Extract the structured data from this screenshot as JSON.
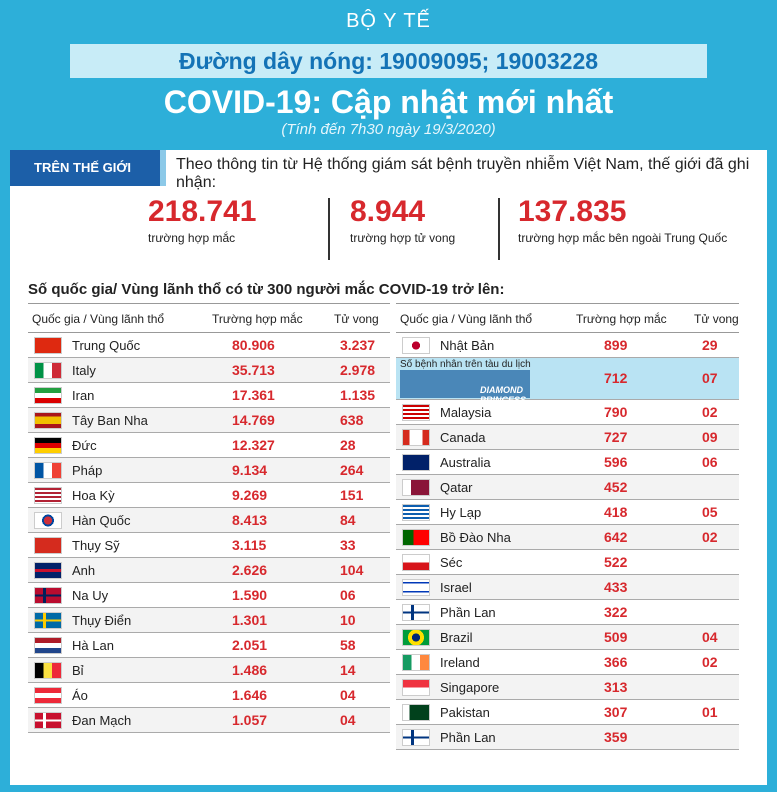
{
  "header": {
    "ministry": "BỘ Y TẾ",
    "hotline": "Đường dây nóng: 19009095; 19003228",
    "title": "COVID-19: Cập nhật mới nhất",
    "subtitle": "(Tính đến 7h30 ngày 19/3/2020)"
  },
  "world": {
    "tag": "TRÊN THẾ GIỚI",
    "intro": "Theo thông tin từ Hệ thống giám sát bệnh truyền nhiễm Việt Nam, thế giới đã ghi nhận:",
    "stats": [
      {
        "value": "218.741",
        "label": "trường hợp mắc"
      },
      {
        "value": "8.944",
        "label": "trường hợp tử vong"
      },
      {
        "value": "137.835",
        "label": "trường hợp mắc bên ngoài Trung Quốc"
      }
    ]
  },
  "section_title": "Số quốc gia/ Vùng lãnh thổ có từ 300 người mắc COVID-19 trở lên:",
  "columns": {
    "country": "Quốc gia / Vùng lãnh thổ",
    "cases": "Trường hợp mắc",
    "deaths": "Tử vong"
  },
  "colors": {
    "accent": "#2dafd9",
    "numbers": "#d7282d",
    "tag": "#1c5fa8"
  },
  "left_rows": [
    {
      "name": "Trung Quốc",
      "cases": "80.906",
      "deaths": "3.237"
    },
    {
      "name": "Italy",
      "cases": "35.713",
      "deaths": "2.978"
    },
    {
      "name": "Iran",
      "cases": "17.361",
      "deaths": "1.135"
    },
    {
      "name": "Tây Ban Nha",
      "cases": "14.769",
      "deaths": "638"
    },
    {
      "name": "Đức",
      "cases": "12.327",
      "deaths": "28"
    },
    {
      "name": "Pháp",
      "cases": "9.134",
      "deaths": "264"
    },
    {
      "name": "Hoa Kỳ",
      "cases": "9.269",
      "deaths": "151"
    },
    {
      "name": "Hàn Quốc",
      "cases": "8.413",
      "deaths": "84"
    },
    {
      "name": "Thụy Sỹ",
      "cases": "3.115",
      "deaths": "33"
    },
    {
      "name": "Anh",
      "cases": "2.626",
      "deaths": "104"
    },
    {
      "name": "Na Uy",
      "cases": "1.590",
      "deaths": "06"
    },
    {
      "name": "Thụy Điển",
      "cases": "1.301",
      "deaths": "10"
    },
    {
      "name": "Hà Lan",
      "cases": "2.051",
      "deaths": "58"
    },
    {
      "name": "Bỉ",
      "cases": "1.486",
      "deaths": "14"
    },
    {
      "name": "Áo",
      "cases": "1.646",
      "deaths": "04"
    },
    {
      "name": "Đan Mạch",
      "cases": "1.057",
      "deaths": "04"
    }
  ],
  "right_rows": [
    {
      "name": "Nhật Bản",
      "cases": "899",
      "deaths": "29"
    },
    {
      "name": "Số bệnh nhân trên tàu du lịch",
      "ship": "DIAMOND PRINCESS",
      "cases": "712",
      "deaths": "07"
    },
    {
      "name": "Malaysia",
      "cases": "790",
      "deaths": "02"
    },
    {
      "name": "Canada",
      "cases": "727",
      "deaths": "09"
    },
    {
      "name": "Australia",
      "cases": "596",
      "deaths": "06"
    },
    {
      "name": "Qatar",
      "cases": "452",
      "deaths": ""
    },
    {
      "name": "Hy Lạp",
      "cases": "418",
      "deaths": "05"
    },
    {
      "name": "Bồ Đào Nha",
      "cases": "642",
      "deaths": "02"
    },
    {
      "name": "Séc",
      "cases": "522",
      "deaths": ""
    },
    {
      "name": "Israel",
      "cases": "433",
      "deaths": ""
    },
    {
      "name": "Phần Lan",
      "cases": "322",
      "deaths": ""
    },
    {
      "name": "Brazil",
      "cases": "509",
      "deaths": "04"
    },
    {
      "name": "Ireland",
      "cases": "366",
      "deaths": "02"
    },
    {
      "name": "Singapore",
      "cases": "313",
      "deaths": ""
    },
    {
      "name": "Pakistan",
      "cases": "307",
      "deaths": "01"
    },
    {
      "name": "Phần Lan",
      "cases": "359",
      "deaths": ""
    }
  ]
}
